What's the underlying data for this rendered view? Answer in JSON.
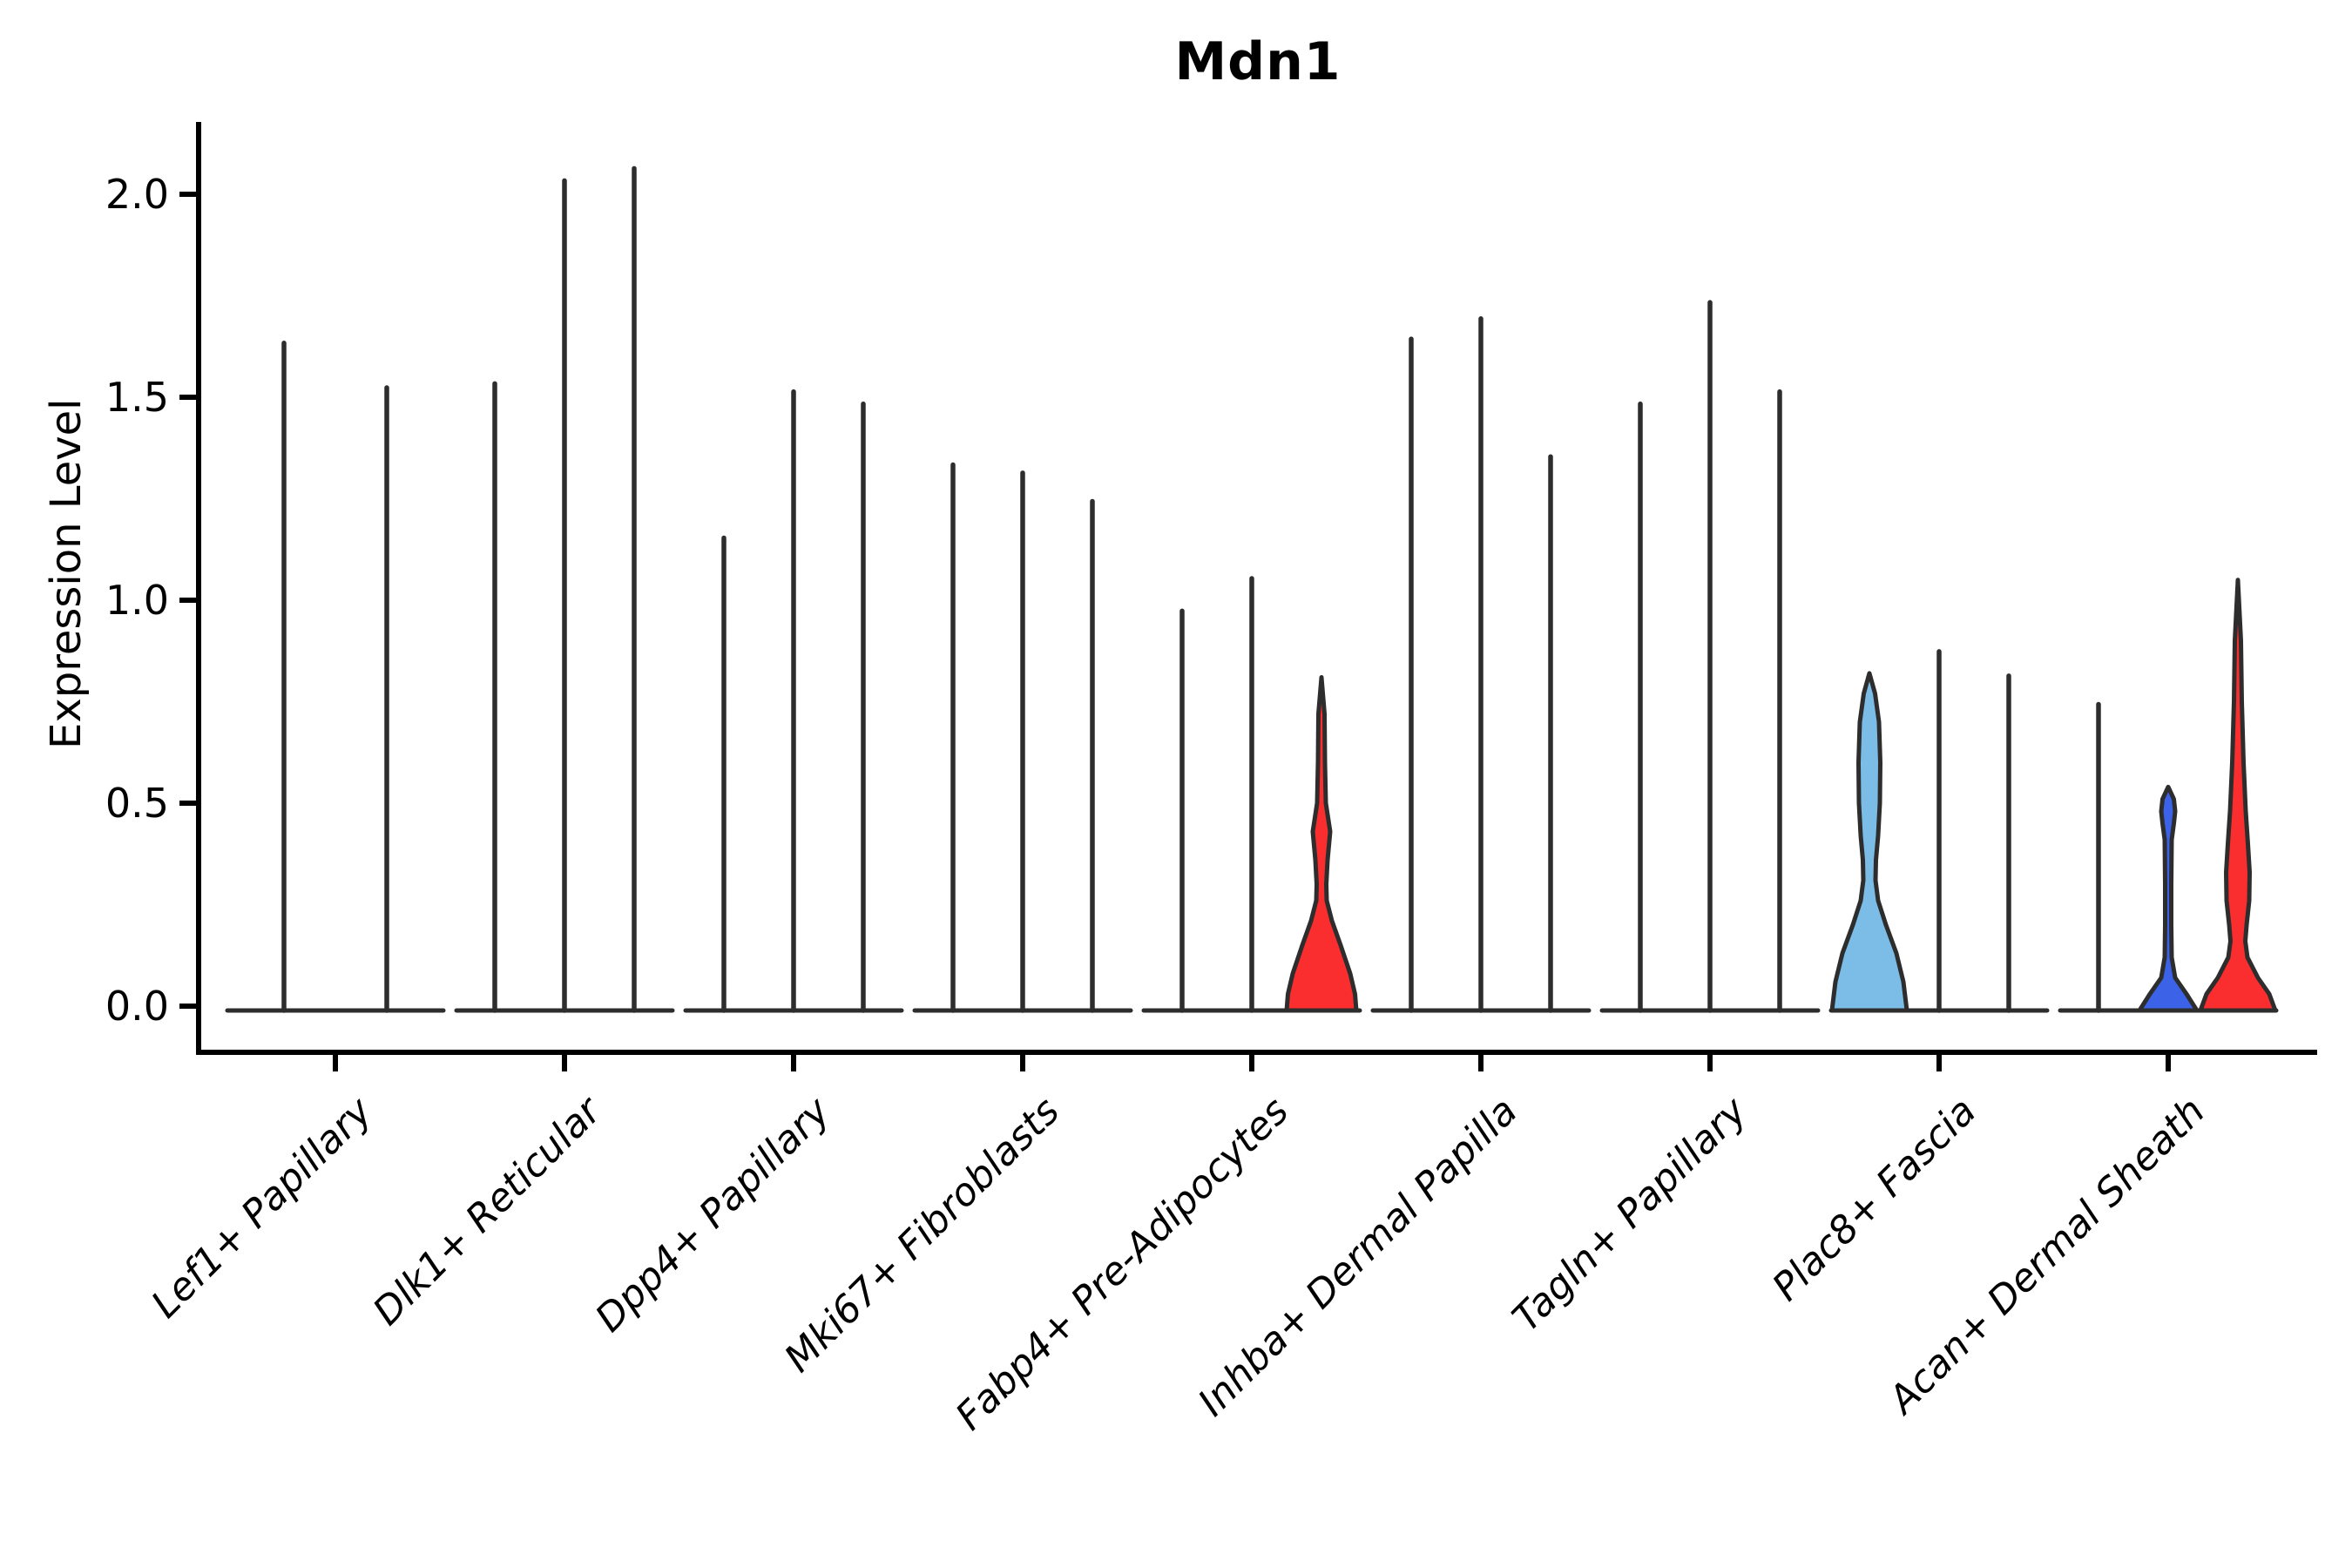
{
  "title": "Mdn1",
  "y_axis": {
    "label": "Expression Level",
    "ticks": [
      "0.0",
      "0.5",
      "1.0",
      "1.5",
      "2.0"
    ]
  },
  "colors": {
    "axis": "#000000",
    "violin_stroke": "#2d2d2d",
    "red": "#fa2e2e",
    "light_blue": "#7cbde8",
    "dark_blue": "#3c62e7"
  },
  "chart_data": {
    "type": "violin",
    "title": "Mdn1",
    "xlabel": "",
    "ylabel": "Expression Level",
    "ylim": [
      0,
      2.2
    ],
    "yticks": [
      0.0,
      0.5,
      1.0,
      1.5,
      2.0
    ],
    "grid": false,
    "legend": "none",
    "categories": [
      "Lef1+ Papillary",
      "Dlk1+ Reticular",
      "Dpp4+ Papillary",
      "Mki67+ Fibroblasts",
      "Fabp4+ Pre-Adipocytes",
      "Inhba+ Dermal Papilla",
      "Tagln+ Papillary",
      "Plac8+ Fascia",
      "Acan+ Dermal Sheath"
    ],
    "groups": [
      {
        "category": "Lef1+ Papillary",
        "violins": [
          {
            "peak": 1.64
          },
          {
            "peak": 1.53
          }
        ]
      },
      {
        "category": "Dlk1+ Reticular",
        "violins": [
          {
            "peak": 1.54
          },
          {
            "peak": 2.04
          },
          {
            "peak": 2.07
          }
        ]
      },
      {
        "category": "Dpp4+ Papillary",
        "violins": [
          {
            "peak": 1.16
          },
          {
            "peak": 1.52
          },
          {
            "peak": 1.49
          }
        ]
      },
      {
        "category": "Mki67+ Fibroblasts",
        "violins": [
          {
            "peak": 1.34
          },
          {
            "peak": 1.32
          },
          {
            "peak": 1.25
          }
        ]
      },
      {
        "category": "Fabp4+ Pre-Adipocytes",
        "violins": [
          {
            "peak": 0.98
          },
          {
            "peak": 1.06
          },
          {
            "peak": 0.81,
            "fill": "#fa2e2e",
            "profile": [
              [
                0.81,
                0
              ],
              [
                0.72,
                7
              ],
              [
                0.6,
                8
              ],
              [
                0.5,
                10
              ],
              [
                0.43,
                20
              ],
              [
                0.36,
                14
              ],
              [
                0.3,
                11
              ],
              [
                0.26,
                12
              ],
              [
                0.21,
                24
              ],
              [
                0.15,
                44
              ],
              [
                0.08,
                66
              ],
              [
                0.03,
                77
              ],
              [
                0.0,
                80
              ]
            ]
          }
        ]
      },
      {
        "category": "Inhba+ Dermal Papilla",
        "violins": [
          {
            "peak": 1.65
          },
          {
            "peak": 1.7
          },
          {
            "peak": 1.36
          }
        ]
      },
      {
        "category": "Tagln+ Papillary",
        "violins": [
          {
            "peak": 1.49
          },
          {
            "peak": 1.74
          },
          {
            "peak": 1.52
          }
        ]
      },
      {
        "category": "Plac8+ Fascia",
        "violins": [
          {
            "peak": 0.82,
            "fill": "#7cbde8",
            "profile": [
              [
                0.82,
                0
              ],
              [
                0.77,
                13
              ],
              [
                0.7,
                22
              ],
              [
                0.6,
                25
              ],
              [
                0.5,
                24
              ],
              [
                0.42,
                20
              ],
              [
                0.36,
                15
              ],
              [
                0.31,
                14
              ],
              [
                0.26,
                20
              ],
              [
                0.2,
                38
              ],
              [
                0.13,
                62
              ],
              [
                0.06,
                78
              ],
              [
                0.0,
                86
              ]
            ]
          },
          {
            "peak": 0.88
          },
          {
            "peak": 0.82
          }
        ]
      },
      {
        "category": "Acan+ Dermal Sheath",
        "violins": [
          {
            "peak": 0.75
          },
          {
            "peak": 0.54,
            "fill": "#3c62e7",
            "profile": [
              [
                0.54,
                0
              ],
              [
                0.51,
                13
              ],
              [
                0.48,
                16
              ],
              [
                0.45,
                13
              ],
              [
                0.41,
                8
              ],
              [
                0.3,
                7
              ],
              [
                0.2,
                7
              ],
              [
                0.12,
                8
              ],
              [
                0.07,
                16
              ],
              [
                0.03,
                42
              ],
              [
                0.0,
                66
              ]
            ]
          },
          {
            "peak": 1.05,
            "fill": "#fa2e2e",
            "profile": [
              [
                1.05,
                0
              ],
              [
                0.9,
                7
              ],
              [
                0.75,
                9
              ],
              [
                0.6,
                13
              ],
              [
                0.48,
                18
              ],
              [
                0.4,
                23
              ],
              [
                0.33,
                27
              ],
              [
                0.26,
                26
              ],
              [
                0.2,
                20
              ],
              [
                0.16,
                17
              ],
              [
                0.12,
                22
              ],
              [
                0.07,
                46
              ],
              [
                0.03,
                72
              ],
              [
                0.0,
                86
              ]
            ]
          }
        ]
      }
    ]
  }
}
